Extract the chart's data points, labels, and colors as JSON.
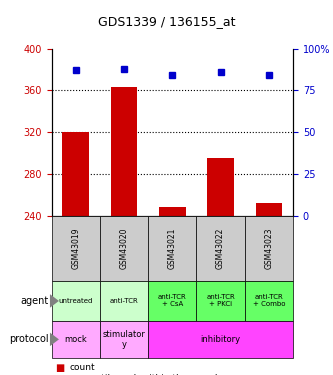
{
  "title": "GDS1339 / 136155_at",
  "samples": [
    "GSM43019",
    "GSM43020",
    "GSM43021",
    "GSM43022",
    "GSM43023"
  ],
  "count_values": [
    320,
    363,
    248,
    295,
    252
  ],
  "percentile_values": [
    87,
    88,
    84,
    86,
    84
  ],
  "count_baseline": 240,
  "ylim_left": [
    240,
    400
  ],
  "ylim_right": [
    0,
    100
  ],
  "yticks_left": [
    240,
    280,
    320,
    360,
    400
  ],
  "yticks_right": [
    0,
    25,
    50,
    75,
    100
  ],
  "agent_labels": [
    "untreated",
    "anti-TCR",
    "anti-TCR\n+ CsA",
    "anti-TCR\n+ PKCi",
    "anti-TCR\n+ Combo"
  ],
  "agent_bg_light": "#ccffcc",
  "agent_bg_dark": "#66ff66",
  "protocol_spans": [
    [
      0,
      1,
      "mock"
    ],
    [
      1,
      2,
      "stimulator\ny"
    ],
    [
      2,
      5,
      "inhibitory"
    ]
  ],
  "protocol_light": "#ffaaff",
  "protocol_dark": "#ff44ff",
  "bar_color": "#cc0000",
  "dot_color": "#0000cc",
  "left_tick_color": "#cc0000",
  "right_tick_color": "#0000cc",
  "sample_bg_color": "#cccccc",
  "gridline_y": [
    280,
    320,
    360
  ]
}
